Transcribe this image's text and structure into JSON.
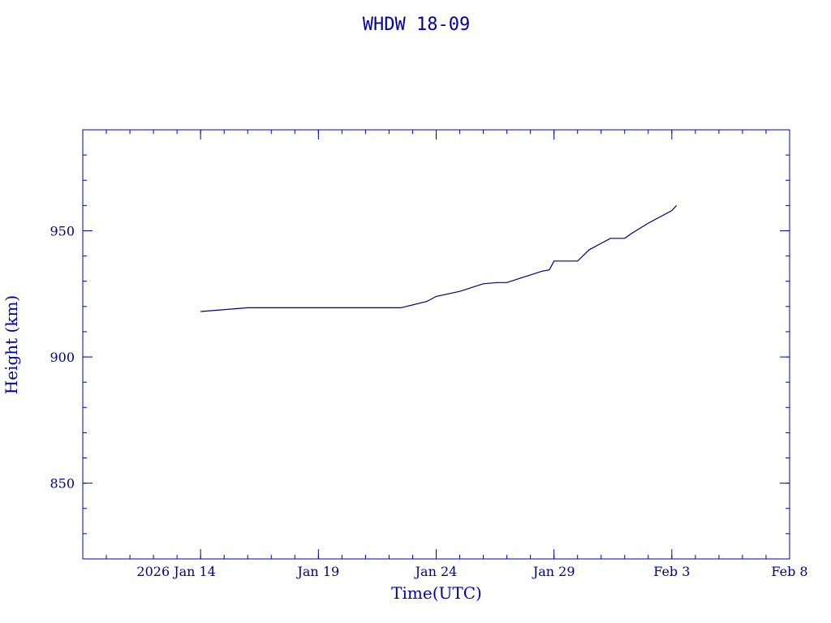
{
  "chart_data": {
    "type": "line",
    "title": "WHDW 18-09",
    "xlabel": "Time(UTC)",
    "ylabel": "Height (km)",
    "xlim": [
      "2026-01-09",
      "2026-02-08"
    ],
    "ylim": [
      820,
      990
    ],
    "x_tick_labels": [
      {
        "date": "2026-01-14",
        "label": "2026 Jan 14"
      },
      {
        "date": "2026-01-19",
        "label": "Jan 19"
      },
      {
        "date": "2026-01-24",
        "label": "Jan 24"
      },
      {
        "date": "2026-01-29",
        "label": "Jan 29"
      },
      {
        "date": "2026-02-03",
        "label": "Feb  3"
      },
      {
        "date": "2026-02-08",
        "label": "Feb  8"
      }
    ],
    "y_tick_labels": [
      {
        "value": 850,
        "label": "850"
      },
      {
        "value": 900,
        "label": "900"
      },
      {
        "value": 950,
        "label": "950"
      }
    ],
    "grid": false,
    "series": [
      {
        "color": "#000070",
        "points": [
          [
            "2026-01-14",
            918.0
          ],
          [
            "2026-01-16",
            919.5
          ],
          [
            "2026-01-20",
            919.5
          ],
          [
            "2026-01-22",
            919.5
          ],
          [
            "2026-01-22.5",
            919.5
          ],
          [
            "2026-01-23.6",
            922.0
          ],
          [
            "2026-01-24",
            924.0
          ],
          [
            "2026-01-25",
            926.0
          ],
          [
            "2026-01-26",
            929.0
          ],
          [
            "2026-01-26.6",
            929.5
          ],
          [
            "2026-01-27",
            929.5
          ],
          [
            "2026-01-28",
            932.5
          ],
          [
            "2026-01-28.5",
            934.0
          ],
          [
            "2026-01-28.8",
            934.5
          ],
          [
            "2026-01-29",
            938.0
          ],
          [
            "2026-01-30",
            938.0
          ],
          [
            "2026-01-30.5",
            942.5
          ],
          [
            "2026-01-31",
            945.0
          ],
          [
            "2026-01-31.4",
            947.0
          ],
          [
            "2026-02-01",
            947.0
          ],
          [
            "2026-02-01.3",
            949.0
          ],
          [
            "2026-02-02",
            953.0
          ],
          [
            "2026-02-03",
            958.0
          ],
          [
            "2026-02-03.2",
            960.0
          ]
        ]
      }
    ]
  }
}
